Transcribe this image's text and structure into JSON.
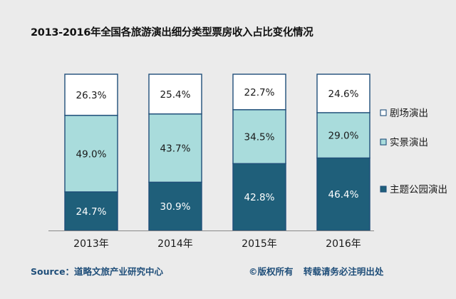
{
  "chart_data": {
    "type": "bar",
    "stacked": "percent",
    "title": "2013-2016年全国各旅游演出细分类型票房收入占比变化情况",
    "categories": [
      "2013年",
      "2014年",
      "2015年",
      "2016年"
    ],
    "series": [
      {
        "name": "主题公园演出",
        "values": [
          24.7,
          30.9,
          42.8,
          46.4
        ],
        "color": "#1f5f7a",
        "label_color": "#ffffff"
      },
      {
        "name": "实景演出",
        "values": [
          49.0,
          43.7,
          34.5,
          29.0
        ],
        "color": "#a9dcdc",
        "label_color": "#1a1a1a"
      },
      {
        "name": "剧场演出",
        "values": [
          26.3,
          25.4,
          22.7,
          24.6
        ],
        "color": "#ffffff",
        "label_color": "#1a1a1a"
      }
    ],
    "value_suffix": "%",
    "ylim": [
      0,
      100
    ],
    "grid": false,
    "legend_position": "right"
  },
  "footer": {
    "source": "Source：道略文旅产业研究中心",
    "copyright": "©版权所有",
    "notice": "转载请务必注明出处"
  },
  "colors": {
    "bar_border": "#1f4e79",
    "axis": "#888888",
    "footer_text": "#1f4e79"
  }
}
